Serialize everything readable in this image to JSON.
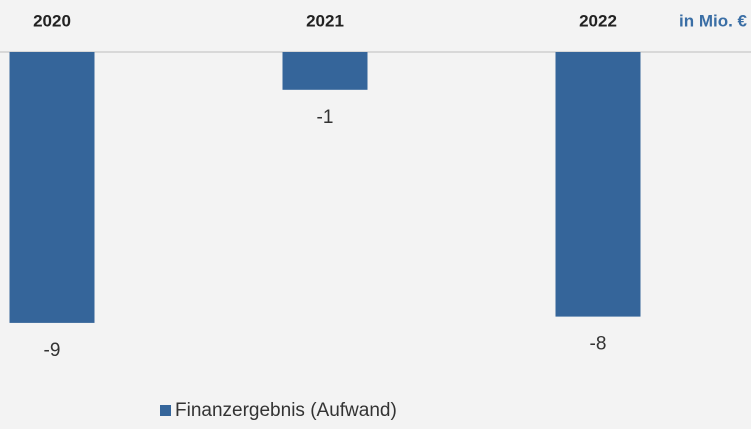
{
  "chart_data": {
    "type": "bar",
    "unit_label": "in Mio. €",
    "categories": [
      "2020",
      "2021",
      "2022"
    ],
    "series": [
      {
        "name": "Finanzergebnis (Aufwand)",
        "color": "#35659a",
        "values": [
          -8.6,
          -1.2,
          -8.4
        ],
        "value_labels": [
          "-9",
          "-1",
          "-8"
        ]
      }
    ],
    "ylim": [
      -10,
      0
    ],
    "legend": "bottom"
  }
}
